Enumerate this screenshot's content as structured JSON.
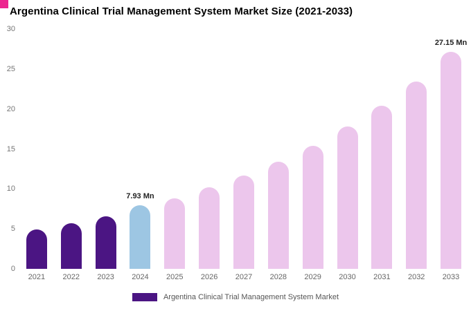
{
  "page": {
    "title": "Argentina Clinical Trial Management System Market Size (2021-2033)",
    "corner_accent_color": "#ec268f"
  },
  "legend": {
    "label": "Argentina Clinical Trial Management System Market",
    "swatch_color": "#4b1583"
  },
  "chart_data": {
    "type": "bar",
    "title": "Argentina Clinical Trial Management System Market Size (2021-2033)",
    "xlabel": "",
    "ylabel": "",
    "unit": "Mn",
    "categories": [
      "2021",
      "2022",
      "2023",
      "2024",
      "2025",
      "2026",
      "2027",
      "2028",
      "2029",
      "2030",
      "2031",
      "2032",
      "2033"
    ],
    "values": [
      4.9,
      5.7,
      6.6,
      7.93,
      8.8,
      10.2,
      11.7,
      13.4,
      15.4,
      17.8,
      20.4,
      23.4,
      27.15
    ],
    "color_roles": [
      "historical",
      "historical",
      "historical",
      "current",
      "forecast",
      "forecast",
      "forecast",
      "forecast",
      "forecast",
      "forecast",
      "forecast",
      "forecast",
      "forecast"
    ],
    "colors": {
      "historical": "#4b1583",
      "current": "#9dc6e3",
      "forecast": "#ecc6ec"
    },
    "annotations": [
      {
        "category": "2024",
        "text": "7.93 Mn"
      },
      {
        "category": "2033",
        "text": "27.15 Mn"
      }
    ],
    "ylim": [
      0,
      30
    ],
    "yticks": [
      0,
      5,
      10,
      15,
      20,
      25,
      30
    ],
    "grid": false,
    "legend_position": "bottom"
  }
}
